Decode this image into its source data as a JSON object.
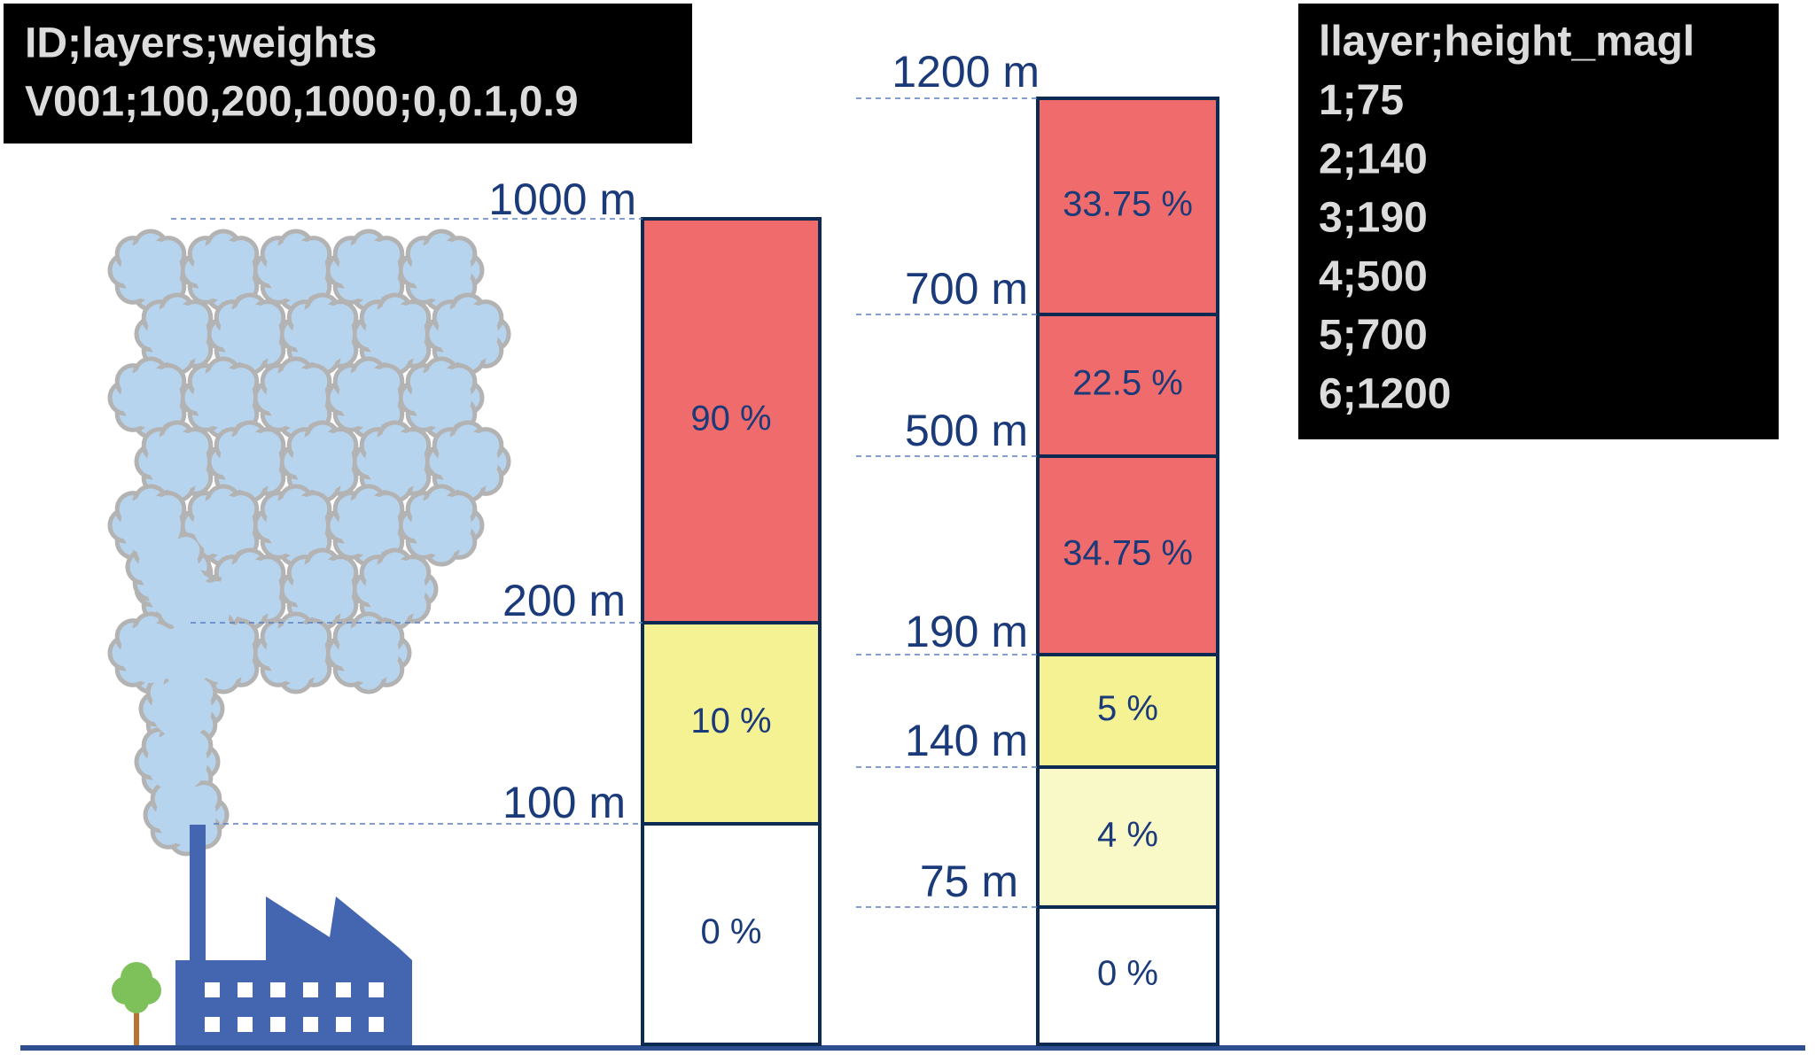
{
  "left_box": {
    "lines": [
      "ID;layers;weights",
      "V001;100,200,1000;0,0.1,0.9"
    ]
  },
  "right_box": {
    "lines": [
      "llayer;height_magl",
      "1;75",
      "2;140",
      "3;190",
      "4;500",
      "5;700",
      "6;1200"
    ]
  },
  "column_1": {
    "height_labels": [
      "1000 m",
      "200 m",
      "100 m"
    ],
    "segments": [
      {
        "label": "90 %"
      },
      {
        "label": "10 %"
      },
      {
        "label": "0 %"
      }
    ]
  },
  "column_2": {
    "height_labels": [
      "1200 m",
      "700 m",
      "500 m",
      "190 m",
      "140 m",
      "75 m"
    ],
    "segments": [
      {
        "label": "33.75 %"
      },
      {
        "label": "22.5 %"
      },
      {
        "label": "34.75 %"
      },
      {
        "label": "5 %"
      },
      {
        "label": "4 %"
      },
      {
        "label": "0 %"
      }
    ]
  }
}
